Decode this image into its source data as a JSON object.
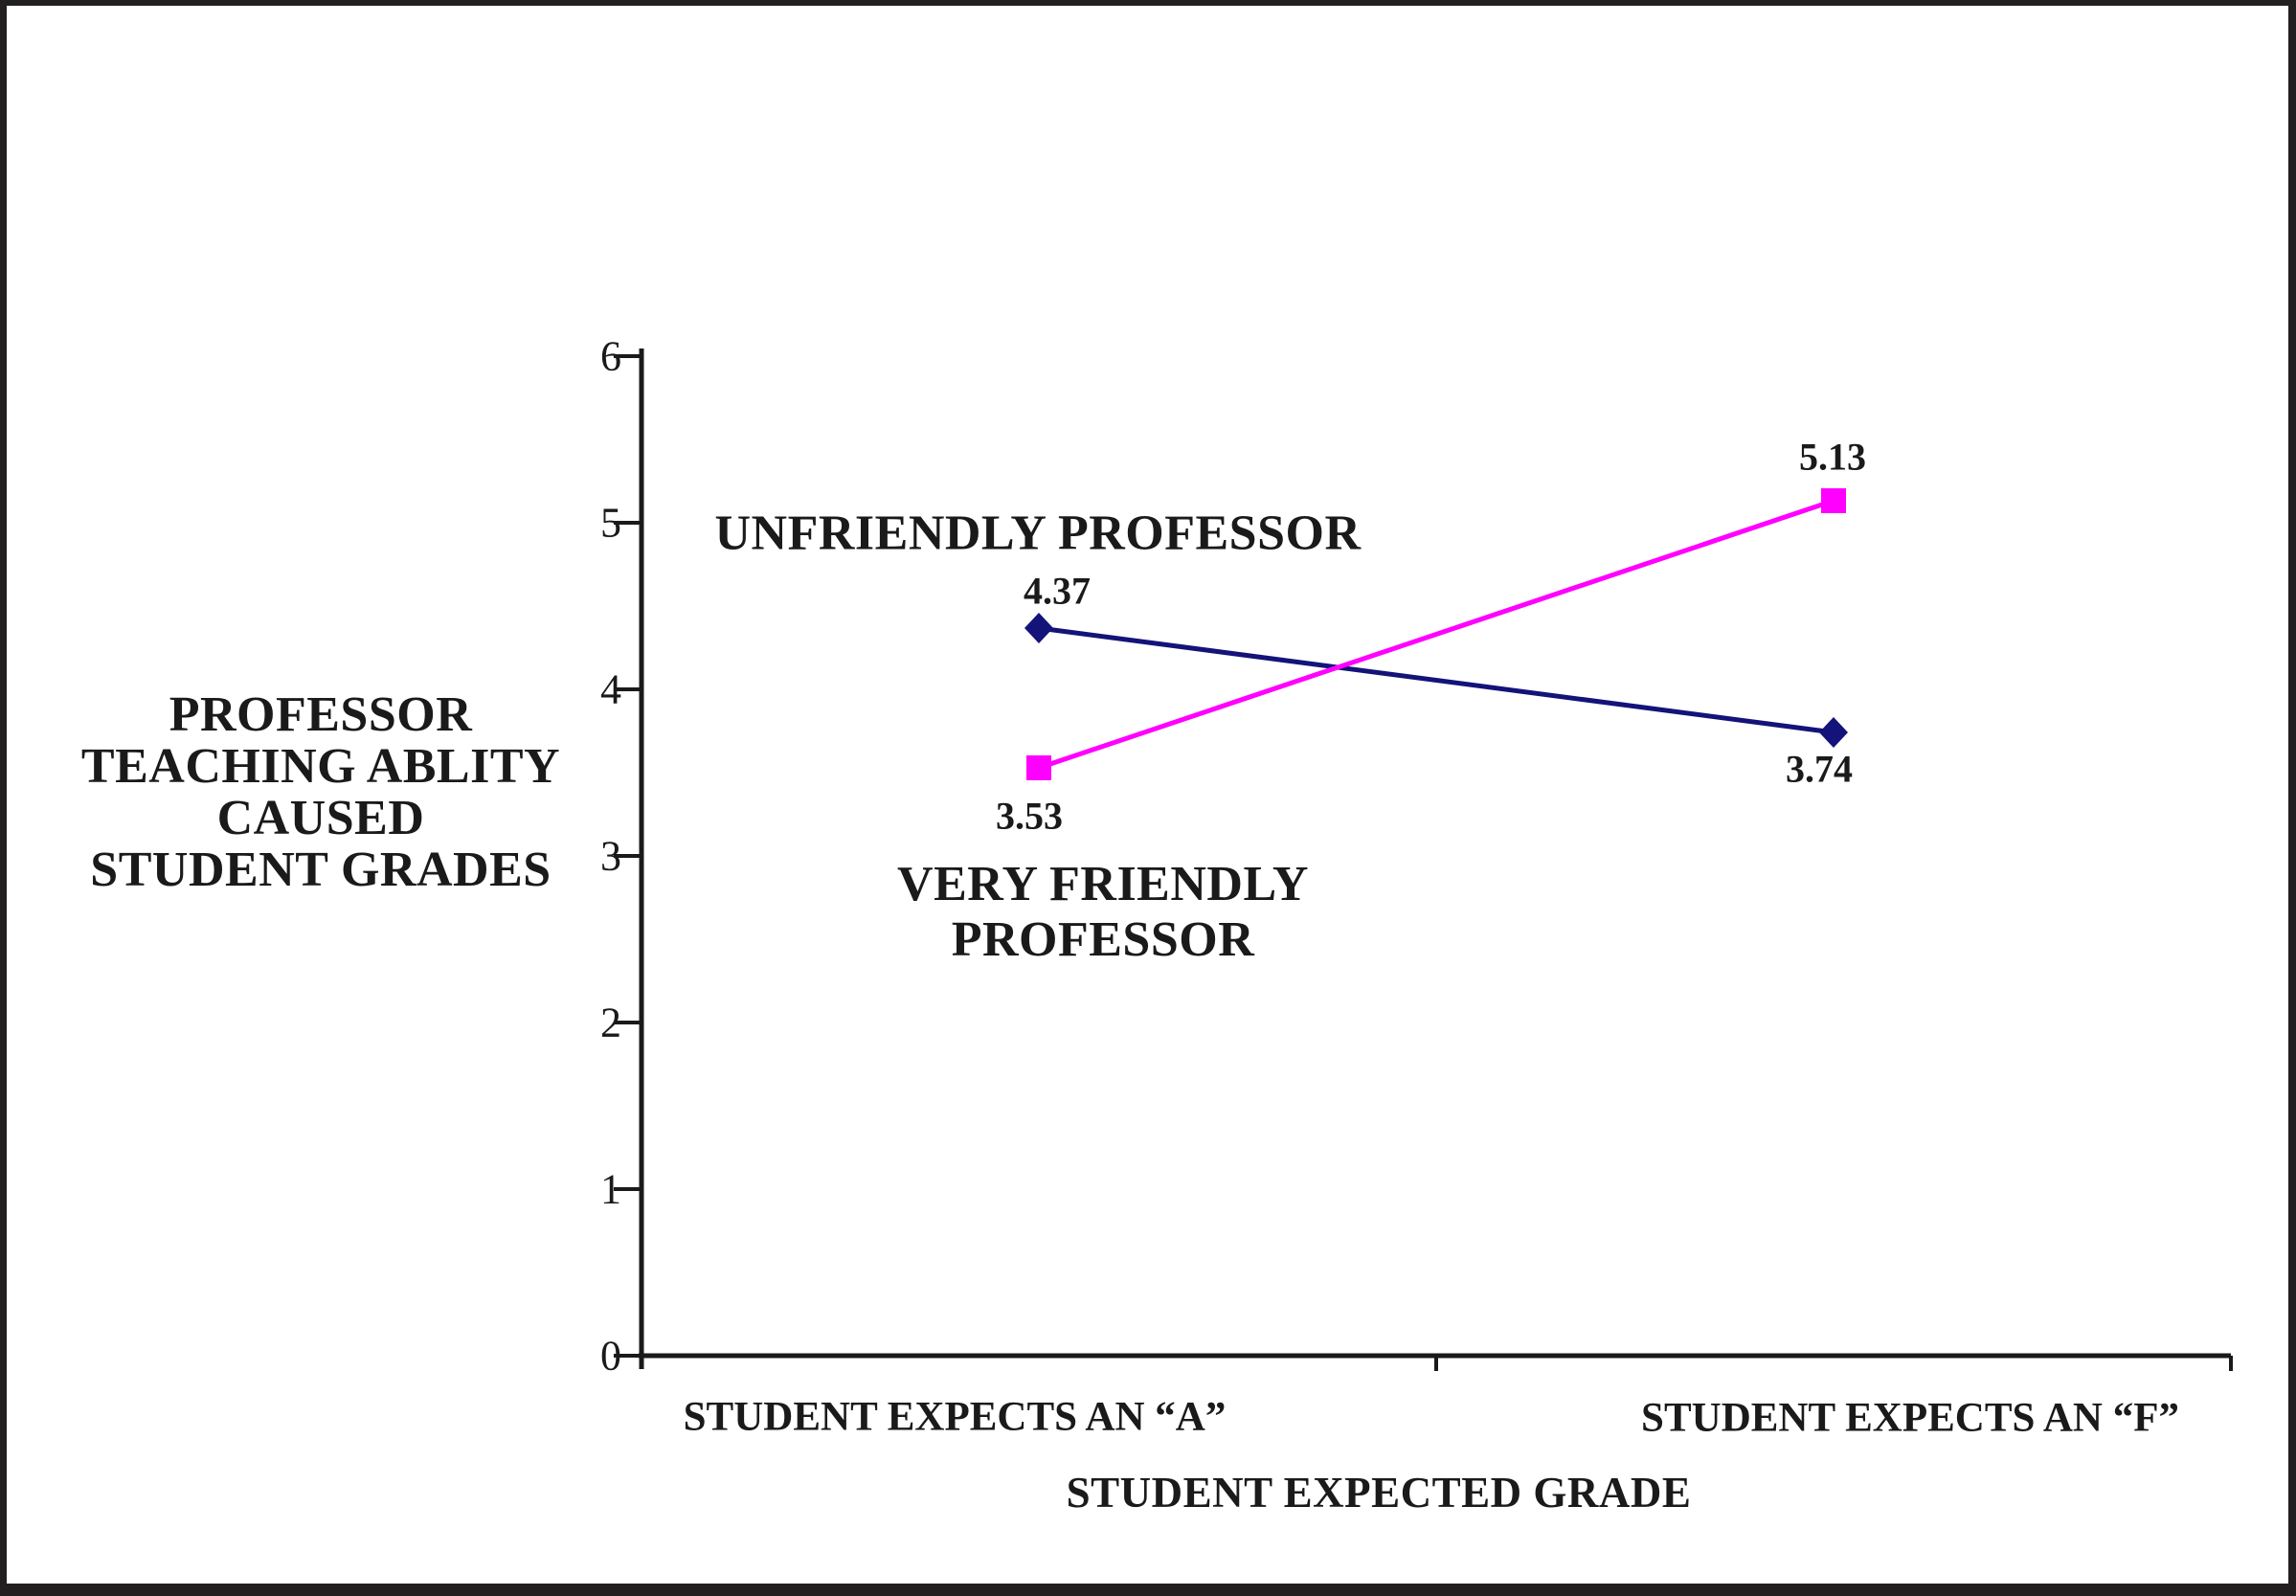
{
  "figure": {
    "y_axis_title_lines": [
      "PROFESSOR",
      "TEACHING ABLITY",
      "CAUSED",
      "STUDENT GRADES"
    ],
    "x_axis_title": "STUDENT EXPECTED GRADE",
    "ytick_labels_top_to_bottom": [
      "6",
      "5",
      "4",
      "3",
      "2",
      "1",
      "0"
    ],
    "frame_color": "#231f20",
    "background_color": "#ffffff",
    "text_color": "#1a1a1a"
  },
  "chart_data": {
    "type": "line",
    "title": "",
    "categories": [
      "STUDENT EXPECTS AN “A”",
      "STUDENT EXPECTS AN “F”"
    ],
    "series": [
      {
        "name": "UNFRIENDLY PROFESSOR",
        "values": [
          4.37,
          3.74
        ],
        "data_labels": [
          "4.37",
          "3.74"
        ],
        "color": "#131379",
        "marker": "diamond"
      },
      {
        "name": "VERY FRIENDLY PROFESSOR",
        "values": [
          3.53,
          5.13
        ],
        "data_labels": [
          "3.53",
          "5.13"
        ],
        "color": "#ff00ff",
        "marker": "square"
      }
    ],
    "xlabel": "STUDENT EXPECTED GRADE",
    "ylabel": "PROFESSOR TEACHING ABLITY CAUSED STUDENT GRADES",
    "ylim": [
      0,
      6
    ],
    "yticks": [
      0,
      1,
      2,
      3,
      4,
      5,
      6
    ],
    "grid": false,
    "legend_position": "inline-annotations"
  }
}
